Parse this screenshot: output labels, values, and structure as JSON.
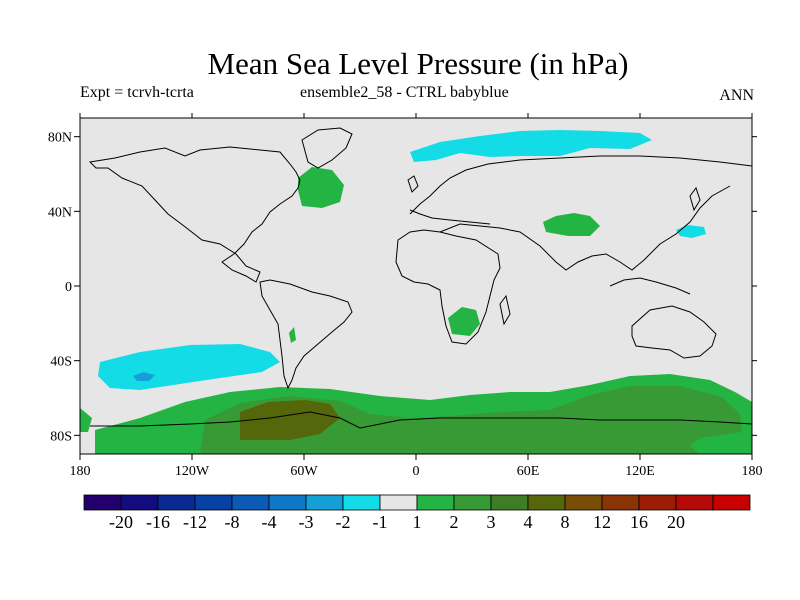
{
  "title": "Mean Sea Level Pressure (in hPa)",
  "subtitle_left": "Expt = tcrvh-tcrta",
  "subtitle_center": "ensemble2_58 - CTRL babyblue",
  "subtitle_right": "ANN",
  "map": {
    "projection": "cylindrical equidistant",
    "lon_range": [
      -180,
      180
    ],
    "lat_range": [
      -90,
      90
    ],
    "background_color": "#e6e6e6",
    "lat_ticks": [
      {
        "value": 80,
        "label": "80N"
      },
      {
        "value": 40,
        "label": "40N"
      },
      {
        "value": 0,
        "label": "0"
      },
      {
        "value": -40,
        "label": "40S"
      },
      {
        "value": -80,
        "label": "80S"
      }
    ],
    "lon_ticks": [
      {
        "value": -180,
        "label": "180"
      },
      {
        "value": -120,
        "label": "120W"
      },
      {
        "value": -60,
        "label": "60W"
      },
      {
        "value": 0,
        "label": "0"
      },
      {
        "value": 60,
        "label": "60E"
      },
      {
        "value": 120,
        "label": "120E"
      },
      {
        "value": 180,
        "label": "180"
      }
    ]
  },
  "colorbar": {
    "colors": [
      "#23006e",
      "#120c7f",
      "#0a2a93",
      "#0841a6",
      "#0a5ab6",
      "#0f78c6",
      "#14a0d6",
      "#14dce6",
      "#e6e6e6",
      "#24b443",
      "#389a34",
      "#3d7d23",
      "#56670b",
      "#784d05",
      "#8a3304",
      "#9c1d06",
      "#b30a07",
      "#c80000"
    ],
    "labels": [
      "-20",
      "-16",
      "-12",
      "-8",
      "-4",
      "-3",
      "-2",
      "-1",
      "1",
      "2",
      "3",
      "4",
      "8",
      "12",
      "16",
      "20"
    ]
  }
}
